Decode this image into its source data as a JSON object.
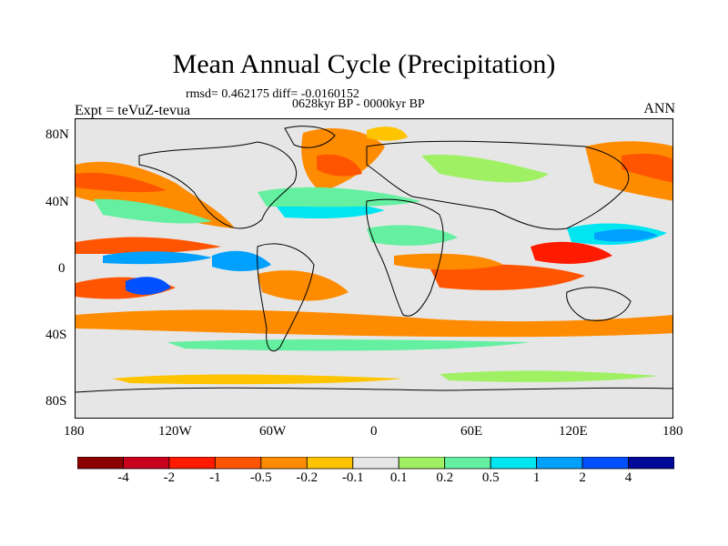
{
  "title": "Mean Annual Cycle (Precipitation)",
  "stats": "rmsd= 0.462175 diff= -0.0160152",
  "period": "0628kyr BP - 0000kyr BP",
  "experiment": "Expt = teVuZ-tevua",
  "season": "ANN",
  "axes": {
    "y_ticks": [
      "80N",
      "40N",
      "0",
      "40S",
      "80S"
    ],
    "x_ticks": [
      "180",
      "120W",
      "60W",
      "0",
      "60E",
      "120E",
      "180"
    ]
  },
  "colorbar": {
    "colors": [
      "#8b0000",
      "#c8001e",
      "#ff1a00",
      "#ff5500",
      "#ff8c00",
      "#ffc400",
      "#e6e6e6",
      "#a0f064",
      "#64f0a0",
      "#00e6f0",
      "#00a0ff",
      "#0050ff",
      "#000a96"
    ],
    "labels": [
      "-4",
      "-2",
      "-1",
      "-0.5",
      "-0.2",
      "-0.1",
      "0.1",
      "0.2",
      "0.5",
      "1",
      "2",
      "4"
    ]
  }
}
